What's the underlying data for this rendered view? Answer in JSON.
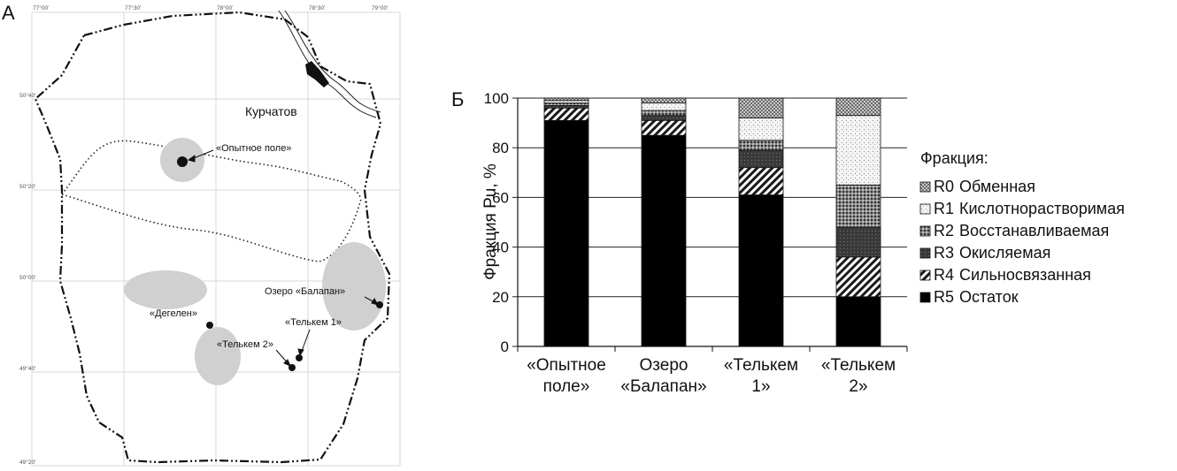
{
  "map": {
    "panel_label": "А",
    "city": "Курчатов",
    "sites": [
      {
        "key": "opytnoe",
        "label": "«Опытное поле»"
      },
      {
        "key": "balapan",
        "label": "Озеро «Балапан»"
      },
      {
        "key": "telkem1",
        "label": "«Телькем 1»"
      },
      {
        "key": "telkem2",
        "label": "«Телькем 2»"
      },
      {
        "key": "degelen",
        "label": "«Дегелен»"
      }
    ],
    "lon_labels": [
      "77°00'",
      "77°30'",
      "78°00'",
      "78°30'",
      "79°00'"
    ],
    "lat_labels": [
      "50°40'",
      "50°20'",
      "50°00'",
      "49°40'",
      "49°20'"
    ]
  },
  "chart_data": {
    "type": "bar",
    "stacked": true,
    "panel_label": "Б",
    "ylabel": "Фракция Pu, %",
    "ylim": [
      0,
      100
    ],
    "yticks": [
      0,
      20,
      40,
      60,
      80,
      100
    ],
    "grid": true,
    "categories": [
      [
        "«Опытное",
        "поле»"
      ],
      [
        "Озеро",
        "«Балапан»"
      ],
      [
        "«Телькем",
        "1»"
      ],
      [
        "«Телькем",
        "2»"
      ]
    ],
    "series": [
      {
        "code": "R5",
        "name": "Остаток",
        "values": [
          91,
          85,
          61,
          20
        ],
        "pattern": "solid"
      },
      {
        "code": "R4",
        "name": "Сильносвязанная",
        "values": [
          5,
          6,
          11,
          16
        ],
        "pattern": "diag"
      },
      {
        "code": "R3",
        "name": "Окисляемая",
        "values": [
          1,
          2,
          7,
          12
        ],
        "pattern": "dark"
      },
      {
        "code": "R2",
        "name": "Восстанавливаемая",
        "values": [
          1,
          2,
          4,
          17
        ],
        "pattern": "cross"
      },
      {
        "code": "R1",
        "name": "Кислотнорастворимая",
        "values": [
          1,
          3,
          9,
          28
        ],
        "pattern": "dots"
      },
      {
        "code": "R0",
        "name": "Обменная",
        "values": [
          1,
          2,
          8,
          7
        ],
        "pattern": "check"
      }
    ],
    "legend": {
      "title": "Фракция:",
      "placement": "right",
      "order": [
        "R0",
        "R1",
        "R2",
        "R3",
        "R4",
        "R5"
      ]
    }
  }
}
